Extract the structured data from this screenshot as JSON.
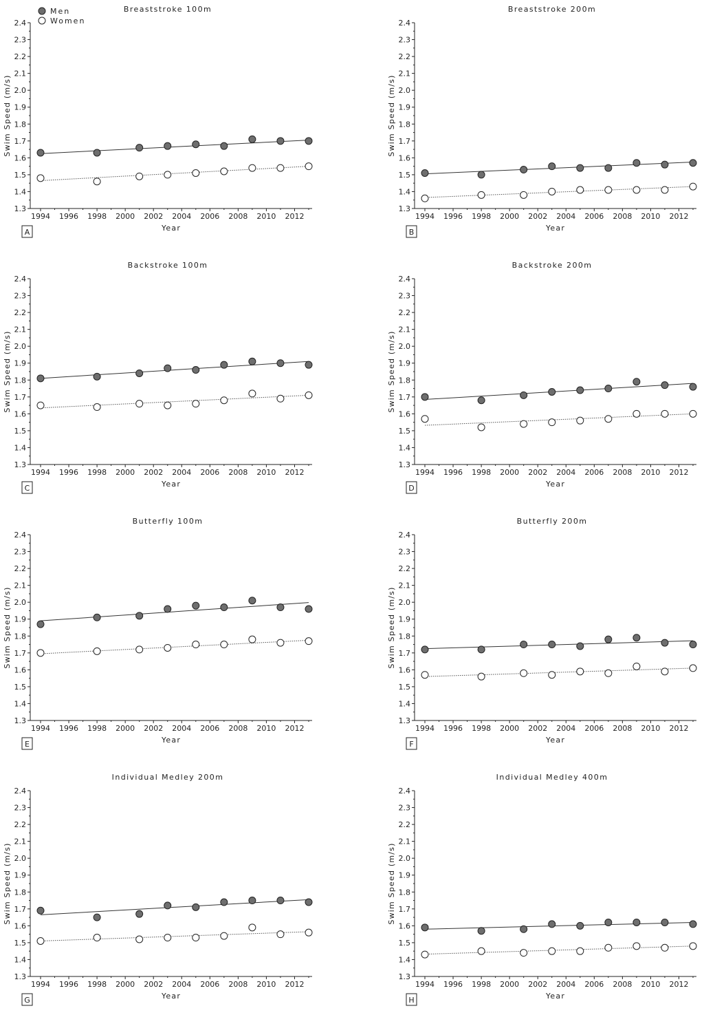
{
  "legend": {
    "men": "Men",
    "women": "Women"
  },
  "colors": {
    "men_fill": "#6e6e6e",
    "women_fill": "#ffffff",
    "stroke": "#222222"
  },
  "chart_data": [
    {
      "type": "scatter",
      "panel": "A",
      "title": "Breaststroke 100m",
      "xlabel": "Year",
      "ylabel": "Swim Speed (m/s)",
      "xlim": [
        1994,
        2013
      ],
      "ylim": [
        1.3,
        2.4
      ],
      "xticks": [
        "1994",
        "1996",
        "1998",
        "2000",
        "2002",
        "2004",
        "2006",
        "2008",
        "2010",
        "2012"
      ],
      "yticks": [
        "1.3",
        "1.4",
        "1.5",
        "1.6",
        "1.7",
        "1.8",
        "1.9",
        "2.0",
        "2.1",
        "2.2",
        "2.3",
        "2.4"
      ],
      "x": [
        1994,
        1998,
        2001,
        2003,
        2005,
        2007,
        2009,
        2011,
        2013
      ],
      "series": [
        {
          "name": "Men",
          "values": [
            1.63,
            1.63,
            1.66,
            1.67,
            1.68,
            1.67,
            1.71,
            1.7,
            1.7
          ],
          "trend": [
            1.625,
            1.705
          ]
        },
        {
          "name": "Women",
          "values": [
            1.48,
            1.46,
            1.49,
            1.5,
            1.51,
            1.52,
            1.54,
            1.54,
            1.55
          ],
          "trend": [
            1.465,
            1.55
          ]
        }
      ]
    },
    {
      "type": "scatter",
      "panel": "B",
      "title": "Breaststroke 200m",
      "xlabel": "Year",
      "ylabel": "Swim Speed (m/s)",
      "xlim": [
        1994,
        2013
      ],
      "ylim": [
        1.3,
        2.4
      ],
      "xticks": [
        "1994",
        "1996",
        "1998",
        "2000",
        "2002",
        "2004",
        "2006",
        "2008",
        "2010",
        "2012"
      ],
      "yticks": [
        "1.3",
        "1.4",
        "1.5",
        "1.6",
        "1.7",
        "1.8",
        "1.9",
        "2.0",
        "2.1",
        "2.2",
        "2.3",
        "2.4"
      ],
      "x": [
        1994,
        1998,
        2001,
        2003,
        2005,
        2007,
        2009,
        2011,
        2013
      ],
      "series": [
        {
          "name": "Men",
          "values": [
            1.51,
            1.5,
            1.53,
            1.55,
            1.54,
            1.54,
            1.57,
            1.56,
            1.57
          ],
          "trend": [
            1.505,
            1.575
          ]
        },
        {
          "name": "Women",
          "values": [
            1.36,
            1.38,
            1.38,
            1.4,
            1.41,
            1.41,
            1.41,
            1.41,
            1.43
          ],
          "trend": [
            1.365,
            1.43
          ]
        }
      ]
    },
    {
      "type": "scatter",
      "panel": "C",
      "title": "Backstroke 100m",
      "xlabel": "Year",
      "ylabel": "Swim Speed (m/s)",
      "xlim": [
        1994,
        2013
      ],
      "ylim": [
        1.3,
        2.4
      ],
      "xticks": [
        "1994",
        "1996",
        "1998",
        "2000",
        "2002",
        "2004",
        "2006",
        "2008",
        "2010",
        "2012"
      ],
      "yticks": [
        "1.3",
        "1.4",
        "1.5",
        "1.6",
        "1.7",
        "1.8",
        "1.9",
        "2.0",
        "2.1",
        "2.2",
        "2.3",
        "2.4"
      ],
      "x": [
        1994,
        1998,
        2001,
        2003,
        2005,
        2007,
        2009,
        2011,
        2013
      ],
      "series": [
        {
          "name": "Men",
          "values": [
            1.81,
            1.82,
            1.84,
            1.87,
            1.86,
            1.89,
            1.91,
            1.9,
            1.89
          ],
          "trend": [
            1.81,
            1.91
          ]
        },
        {
          "name": "Women",
          "values": [
            1.65,
            1.64,
            1.66,
            1.65,
            1.66,
            1.68,
            1.72,
            1.69,
            1.71
          ],
          "trend": [
            1.635,
            1.71
          ]
        }
      ]
    },
    {
      "type": "scatter",
      "panel": "D",
      "title": "Backstroke 200m",
      "xlabel": "Year",
      "ylabel": "Swim Speed (m/s)",
      "xlim": [
        1994,
        2013
      ],
      "ylim": [
        1.3,
        2.4
      ],
      "xticks": [
        "1994",
        "1996",
        "1998",
        "2000",
        "2002",
        "2004",
        "2006",
        "2008",
        "2010",
        "2012"
      ],
      "yticks": [
        "1.3",
        "1.4",
        "1.5",
        "1.6",
        "1.7",
        "1.8",
        "1.9",
        "2.0",
        "2.1",
        "2.2",
        "2.3",
        "2.4"
      ],
      "x": [
        1994,
        1998,
        2001,
        2003,
        2005,
        2007,
        2009,
        2011,
        2013
      ],
      "series": [
        {
          "name": "Men",
          "values": [
            1.7,
            1.68,
            1.71,
            1.73,
            1.74,
            1.75,
            1.79,
            1.77,
            1.76
          ],
          "trend": [
            1.685,
            1.78
          ]
        },
        {
          "name": "Women",
          "values": [
            1.57,
            1.52,
            1.54,
            1.55,
            1.56,
            1.57,
            1.6,
            1.6,
            1.6
          ],
          "trend": [
            1.532,
            1.6
          ]
        }
      ]
    },
    {
      "type": "scatter",
      "panel": "E",
      "title": "Butterfly 100m",
      "xlabel": "Year",
      "ylabel": "Swim Speed (m/s)",
      "xlim": [
        1994,
        2013
      ],
      "ylim": [
        1.3,
        2.4
      ],
      "xticks": [
        "1994",
        "1996",
        "1998",
        "2000",
        "2002",
        "2004",
        "2006",
        "2008",
        "2010",
        "2012"
      ],
      "yticks": [
        "1.3",
        "1.4",
        "1.5",
        "1.6",
        "1.7",
        "1.8",
        "1.9",
        "2.0",
        "2.1",
        "2.2",
        "2.3",
        "2.4"
      ],
      "x": [
        1994,
        1998,
        2001,
        2003,
        2005,
        2007,
        2009,
        2011,
        2013
      ],
      "series": [
        {
          "name": "Men",
          "values": [
            1.87,
            1.91,
            1.92,
            1.96,
            1.98,
            1.97,
            2.01,
            1.97,
            1.96
          ],
          "trend": [
            1.89,
            1.998
          ]
        },
        {
          "name": "Women",
          "values": [
            1.7,
            1.71,
            1.72,
            1.73,
            1.75,
            1.75,
            1.78,
            1.76,
            1.77
          ],
          "trend": [
            1.695,
            1.775
          ]
        }
      ]
    },
    {
      "type": "scatter",
      "panel": "F",
      "title": "Butterfly 200m",
      "xlabel": "Year",
      "ylabel": "Swim Speed (m/s)",
      "xlim": [
        1994,
        2013
      ],
      "ylim": [
        1.3,
        2.4
      ],
      "xticks": [
        "1994",
        "1996",
        "1998",
        "2000",
        "2002",
        "2004",
        "2006",
        "2008",
        "2010",
        "2012"
      ],
      "yticks": [
        "1.3",
        "1.4",
        "1.5",
        "1.6",
        "1.7",
        "1.8",
        "1.9",
        "2.0",
        "2.1",
        "2.2",
        "2.3",
        "2.4"
      ],
      "x": [
        1994,
        1998,
        2001,
        2003,
        2005,
        2007,
        2009,
        2011,
        2013
      ],
      "series": [
        {
          "name": "Men",
          "values": [
            1.72,
            1.72,
            1.75,
            1.75,
            1.74,
            1.78,
            1.79,
            1.76,
            1.75
          ],
          "trend": [
            1.725,
            1.772
          ]
        },
        {
          "name": "Women",
          "values": [
            1.57,
            1.56,
            1.58,
            1.57,
            1.59,
            1.58,
            1.62,
            1.59,
            1.61
          ],
          "trend": [
            1.56,
            1.61
          ]
        }
      ]
    },
    {
      "type": "scatter",
      "panel": "G",
      "title": "Individual Medley 200m",
      "xlabel": "Year",
      "ylabel": "Swim Speed (m/s)",
      "xlim": [
        1994,
        2013
      ],
      "ylim": [
        1.3,
        2.4
      ],
      "xticks": [
        "1994",
        "1996",
        "1998",
        "2000",
        "2002",
        "2004",
        "2006",
        "2008",
        "2010",
        "2012"
      ],
      "yticks": [
        "1.3",
        "1.4",
        "1.5",
        "1.6",
        "1.7",
        "1.8",
        "1.9",
        "2.0",
        "2.1",
        "2.2",
        "2.3",
        "2.4"
      ],
      "x": [
        1994,
        1998,
        2001,
        2003,
        2005,
        2007,
        2009,
        2011,
        2013
      ],
      "series": [
        {
          "name": "Men",
          "values": [
            1.69,
            1.65,
            1.67,
            1.72,
            1.71,
            1.74,
            1.75,
            1.75,
            1.74
          ],
          "trend": [
            1.665,
            1.755
          ]
        },
        {
          "name": "Women",
          "values": [
            1.51,
            1.53,
            1.52,
            1.53,
            1.53,
            1.54,
            1.59,
            1.55,
            1.56
          ],
          "trend": [
            1.51,
            1.565
          ]
        }
      ]
    },
    {
      "type": "scatter",
      "panel": "H",
      "title": "Individual Medley 400m",
      "xlabel": "Year",
      "ylabel": "Swim Speed (m/s)",
      "xlim": [
        1994,
        2013
      ],
      "ylim": [
        1.3,
        2.4
      ],
      "xticks": [
        "1994",
        "1996",
        "1998",
        "2000",
        "2002",
        "2004",
        "2006",
        "2008",
        "2010",
        "2012"
      ],
      "yticks": [
        "1.3",
        "1.4",
        "1.5",
        "1.6",
        "1.7",
        "1.8",
        "1.9",
        "2.0",
        "2.1",
        "2.2",
        "2.3",
        "2.4"
      ],
      "x": [
        1994,
        1998,
        2001,
        2003,
        2005,
        2007,
        2009,
        2011,
        2013
      ],
      "series": [
        {
          "name": "Men",
          "values": [
            1.59,
            1.57,
            1.58,
            1.61,
            1.6,
            1.62,
            1.62,
            1.62,
            1.61
          ],
          "trend": [
            1.58,
            1.62
          ]
        },
        {
          "name": "Women",
          "values": [
            1.43,
            1.45,
            1.44,
            1.45,
            1.45,
            1.47,
            1.48,
            1.47,
            1.48
          ],
          "trend": [
            1.432,
            1.48
          ]
        }
      ]
    }
  ]
}
